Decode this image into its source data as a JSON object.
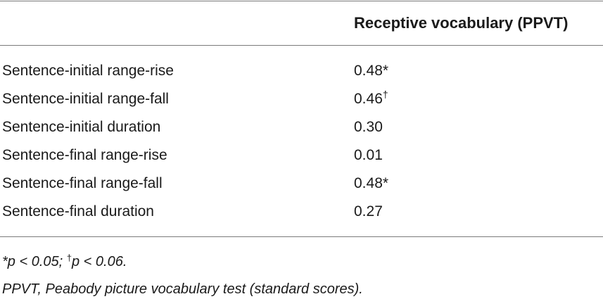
{
  "table": {
    "column_header": "Receptive vocabulary (PPVT)",
    "rows": [
      {
        "label": "Sentence-initial range-rise",
        "value": "0.48",
        "mark": "*"
      },
      {
        "label": "Sentence-initial range-fall",
        "value": "0.46",
        "mark": "†"
      },
      {
        "label": "Sentence-initial duration",
        "value": "0.30",
        "mark": ""
      },
      {
        "label": "Sentence-final range-rise",
        "value": "0.01",
        "mark": ""
      },
      {
        "label": "Sentence-final range-fall",
        "value": "0.48",
        "mark": "*"
      },
      {
        "label": "Sentence-final duration",
        "value": "0.27",
        "mark": ""
      }
    ]
  },
  "footnotes": {
    "significance": {
      "star": "*",
      "star_text": "p < 0.05; ",
      "dagger": "†",
      "dagger_text": "p < 0.06."
    },
    "abbreviation": "PPVT, Peabody picture vocabulary test (standard scores)."
  }
}
